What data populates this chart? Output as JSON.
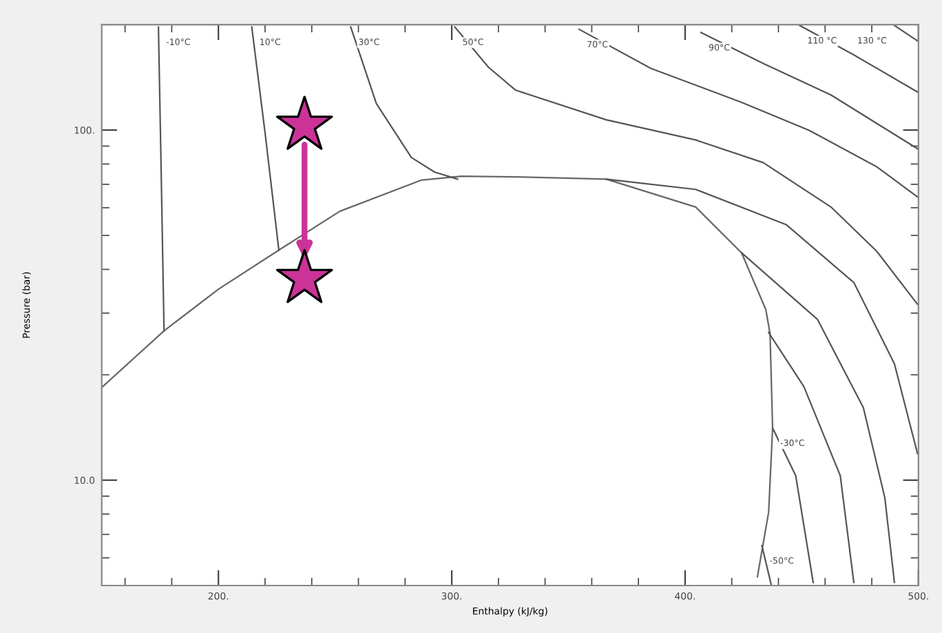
{
  "chart_data": {
    "type": "line",
    "xlabel": "Enthalpy (kJ/kg)",
    "ylabel": "Pressure (bar)",
    "log": "y",
    "xlim": [
      150,
      500
    ],
    "ylim": [
      5,
      200
    ],
    "xticks": [
      {
        "value": 200,
        "label": "200."
      },
      {
        "value": 300,
        "label": "300."
      },
      {
        "value": 400,
        "label": "400."
      },
      {
        "value": 500,
        "label": "500."
      }
    ],
    "yticks": [
      {
        "value": 10,
        "label": "10.0"
      },
      {
        "value": 100,
        "label": "100."
      }
    ],
    "grid": false,
    "legend": false,
    "series": [
      {
        "color": "#666666",
        "x": [
          150,
          176.7,
          200,
          225.9,
          252,
          286.8,
          304,
          327.4,
          366.2,
          404.5,
          424.2,
          434.6,
          436.4,
          437.5,
          435.8,
          431
        ],
        "values": [
          18.4,
          26.7,
          35.1,
          45.4,
          58.6,
          71.9,
          73.8,
          73.5,
          72.4,
          60.3,
          44.6,
          30.7,
          26.2,
          14.1,
          8.1,
          5.3
        ]
      },
      {
        "name": "-10°C",
        "color": "#555555",
        "x": [
          174.3,
          175.5,
          176.7,
          null,
          435.8,
          450.9,
          466.5,
          472.3
        ],
        "values": [
          197,
          74.5,
          26.7,
          null,
          26.4,
          18.5,
          10.3,
          5.1
        ]
      },
      {
        "name": "10°C",
        "color": "#555555",
        "x": [
          214.3,
          220.1,
          225.9,
          null,
          424.2,
          456.7,
          476.4,
          485.6,
          489.7
        ],
        "values": [
          197,
          97,
          45.4,
          null,
          44.6,
          28.8,
          16.1,
          8.9,
          5.1
        ]
      },
      {
        "name": "30°C",
        "color": "#555555",
        "x": [
          256.7,
          267.7,
          282.7,
          292.6,
          302.5,
          null,
          366.2,
          404.5,
          443.3,
          472.3,
          489.7,
          499.6
        ],
        "values": [
          197,
          119,
          83.5,
          75.9,
          72.4,
          null,
          72.4,
          67.7,
          53.7,
          36.7,
          21.5,
          11.9
        ]
      },
      {
        "name": "50°C",
        "color": "#555555",
        "x": [
          301.3,
          315.8,
          327.4,
          366.2,
          404.5,
          433.5,
          462.5,
          482.2,
          499.6
        ],
        "values": [
          197,
          151,
          130,
          107,
          93.7,
          80.7,
          60.3,
          45,
          31.8
        ]
      },
      {
        "name": "70°C",
        "color": "#555555",
        "x": [
          354.6,
          385.4,
          424.2,
          453.2,
          482.2,
          500
        ],
        "values": [
          194,
          150,
          120,
          99.8,
          78.5,
          64.1
        ]
      },
      {
        "name": "90°C",
        "color": "#555555",
        "x": [
          406.8,
          433.5,
          462.5,
          500
        ],
        "values": [
          190,
          155,
          126,
          88.1
        ]
      },
      {
        "name": "110 °C",
        "color": "#555555",
        "x": [
          449.1,
          472.3,
          500
        ],
        "values": [
          199,
          164,
          128
        ]
      },
      {
        "name": "130 °C",
        "color": "#555555",
        "x": [
          489.7,
          500
        ],
        "values": [
          199,
          179
        ]
      },
      {
        "name": "-30°C",
        "color": "#555555",
        "x": [
          437.5,
          447.4,
          454.9
        ],
        "values": [
          14.1,
          10.3,
          5.1
        ]
      },
      {
        "name": "-50°C",
        "color": "#555555",
        "x": [
          432.9,
          437
        ],
        "values": [
          6.5,
          5.0
        ]
      },
      {
        "type": "scatter",
        "marker": "star",
        "color": "#cc3399",
        "x": [
          236.9,
          236.9
        ],
        "values": [
          103,
          37.6
        ]
      }
    ]
  }
}
